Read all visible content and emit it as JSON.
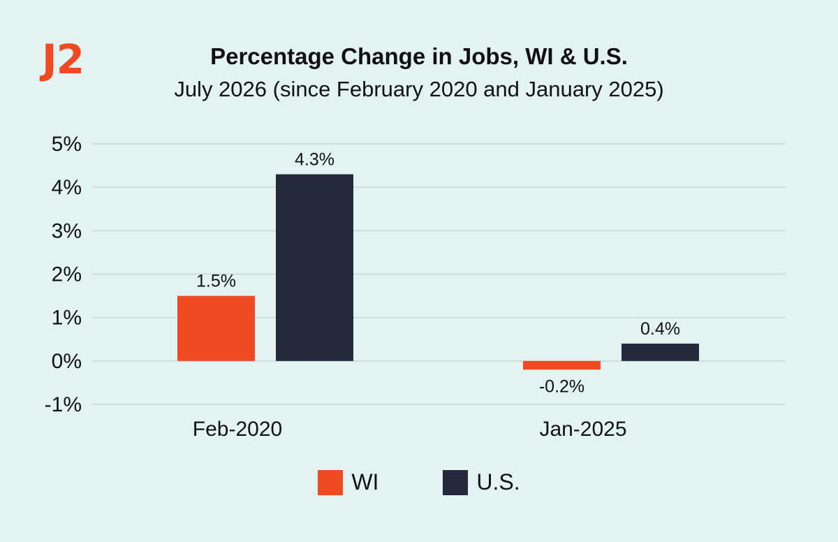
{
  "header": {
    "badge": "J2",
    "badge_color": "#f04a23"
  },
  "chart_data": {
    "type": "bar",
    "title": "Percentage Change in Jobs, WI & U.S.",
    "subtitle": "July 2026 (since February 2020 and January 2025)",
    "categories": [
      "Feb-2020",
      "Jan-2025"
    ],
    "series": [
      {
        "name": "WI",
        "color": "#f04a23",
        "values": [
          1.5,
          -0.2
        ],
        "labels": [
          "1.5%",
          "-0.2%"
        ]
      },
      {
        "name": "U.S.",
        "color": "#242a3b",
        "values": [
          4.3,
          0.4
        ],
        "labels": [
          "4.3%",
          "0.4%"
        ]
      }
    ],
    "ylim": [
      -1,
      5
    ],
    "yticks": [
      "-1%",
      "0%",
      "1%",
      "2%",
      "3%",
      "4%",
      "5%"
    ],
    "grid": true,
    "legend_position": "bottom"
  }
}
